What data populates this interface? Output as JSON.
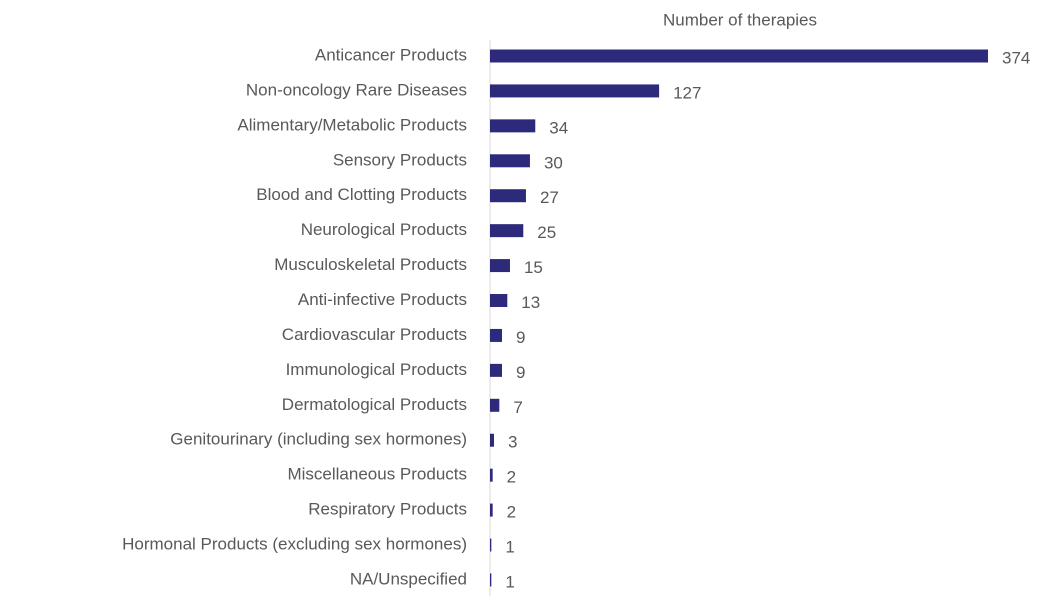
{
  "chart_data": {
    "type": "barh",
    "title": "Number of therapies",
    "categories": [
      "Anticancer Products",
      "Non-oncology Rare Diseases",
      "Alimentary/Metabolic Products",
      "Sensory Products",
      "Blood and Clotting Products",
      "Neurological Products",
      "Musculoskeletal Products",
      "Anti-infective Products",
      "Cardiovascular Products",
      "Immunological Products",
      "Dermatological Products",
      "Genitourinary (including sex hormones)",
      "Miscellaneous Products",
      "Respiratory Products",
      "Hormonal Products (excluding sex hormones)",
      "NA/Unspecified"
    ],
    "values": [
      374,
      127,
      34,
      30,
      27,
      25,
      15,
      13,
      9,
      9,
      7,
      3,
      2,
      2,
      1,
      1
    ],
    "color": "#2e2a7b"
  }
}
